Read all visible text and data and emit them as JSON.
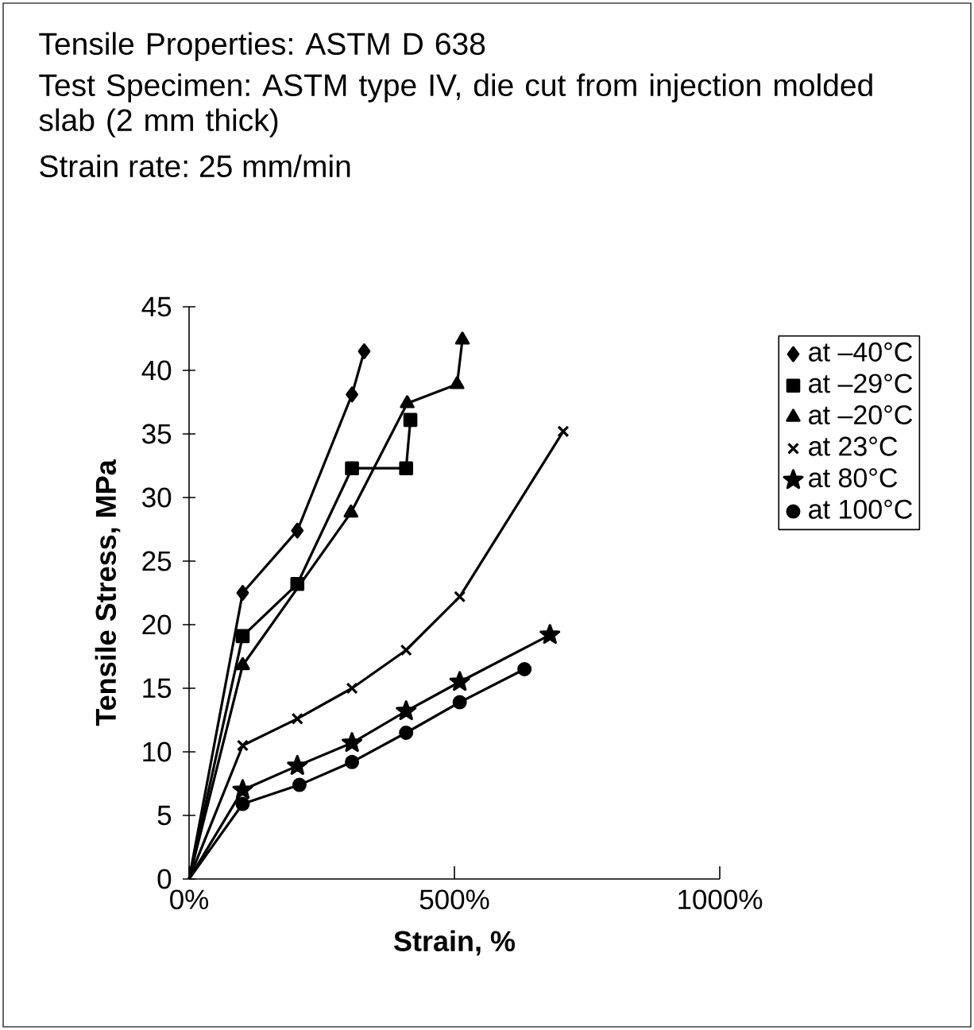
{
  "chart_data": {
    "type": "line",
    "title": "Tensile Properties: ASTM D 638",
    "subtitle": "Test Specimen: ASTM type IV, die cut from injection molded slab (2 mm thick)",
    "annotations": [
      "Strain rate: 25 mm/min"
    ],
    "xlabel": "Strain, %",
    "ylabel": "Tensile Stress, MPa",
    "xlim": [
      0,
      1000
    ],
    "xticks": [
      {
        "value": 0,
        "label": "0%"
      },
      {
        "value": 500,
        "label": "500%"
      },
      {
        "value": 1000,
        "label": "1000%"
      }
    ],
    "ylim": [
      0,
      45
    ],
    "yticks": [
      0,
      5,
      10,
      15,
      20,
      25,
      30,
      35,
      40,
      45
    ],
    "legend": "right",
    "series": [
      {
        "name": "at –40°C",
        "color": "#000000",
        "marker": "diamond",
        "x": [
          0,
          101,
          204,
          307,
          330
        ],
        "values": [
          0,
          22.5,
          27.4,
          38.1,
          41.5
        ]
      },
      {
        "name": "at –29°C",
        "color": "#000000",
        "marker": "square",
        "x": [
          0,
          101,
          204,
          307,
          409,
          417
        ],
        "values": [
          0,
          19.1,
          23.2,
          32.3,
          32.3,
          36.1
        ]
      },
      {
        "name": "at –20°C",
        "color": "#000000",
        "marker": "triangle",
        "x": [
          0,
          101,
          305,
          411,
          505,
          515
        ],
        "values": [
          0,
          16.8,
          28.8,
          37.4,
          38.9,
          42.4
        ]
      },
      {
        "name": "at 23°C",
        "color": "#000000",
        "marker": "cross",
        "x": [
          0,
          101,
          204,
          307,
          409,
          510,
          705
        ],
        "values": [
          0,
          10.5,
          12.6,
          15.0,
          18.0,
          22.2,
          35.2
        ]
      },
      {
        "name": "at 80°C",
        "color": "#000000",
        "marker": "star",
        "x": [
          0,
          101,
          204,
          307,
          409,
          510,
          680
        ],
        "values": [
          0,
          7.0,
          8.9,
          10.7,
          13.2,
          15.5,
          19.2
        ]
      },
      {
        "name": "at 100°C",
        "color": "#000000",
        "marker": "circle",
        "x": [
          0,
          101,
          208,
          307,
          409,
          510,
          632
        ],
        "values": [
          0,
          5.9,
          7.4,
          9.2,
          11.5,
          13.9,
          16.5
        ]
      }
    ]
  }
}
